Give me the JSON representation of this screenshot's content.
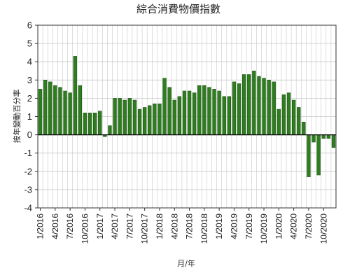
{
  "chart_data": {
    "type": "bar",
    "title": "綜合消費物價指數",
    "xlabel": "月/年",
    "ylabel": "按年變動百分率",
    "ylim": [
      -4,
      6
    ],
    "yticks": [
      -4,
      -3,
      -2,
      -1,
      0,
      1,
      2,
      3,
      4,
      5,
      6
    ],
    "grid": true,
    "legend": "none",
    "colors": {
      "bar": "#2e7d1e",
      "bar_edge": "#1a4a12",
      "grid": "#c8c8c8",
      "zero_line": "#000000"
    },
    "x_tick_labels": [
      {
        "index": 0,
        "label": "1/2016"
      },
      {
        "index": 3,
        "label": "4/2016"
      },
      {
        "index": 6,
        "label": "7/2016"
      },
      {
        "index": 9,
        "label": "10/2016"
      },
      {
        "index": 12,
        "label": "1/2017"
      },
      {
        "index": 15,
        "label": "4/2017"
      },
      {
        "index": 18,
        "label": "7/2017"
      },
      {
        "index": 21,
        "label": "10/2017"
      },
      {
        "index": 24,
        "label": "1/2018"
      },
      {
        "index": 27,
        "label": "4/2018"
      },
      {
        "index": 30,
        "label": "7/2018"
      },
      {
        "index": 33,
        "label": "10/2018"
      },
      {
        "index": 36,
        "label": "1/2019"
      },
      {
        "index": 39,
        "label": "4/2019"
      },
      {
        "index": 42,
        "label": "7/2019"
      },
      {
        "index": 45,
        "label": "10/2019"
      },
      {
        "index": 48,
        "label": "1/2020"
      },
      {
        "index": 51,
        "label": "4/2020"
      },
      {
        "index": 54,
        "label": "7/2020"
      },
      {
        "index": 57,
        "label": "10/2020"
      }
    ],
    "values": [
      2.5,
      3.0,
      2.9,
      2.7,
      2.6,
      2.4,
      2.3,
      4.3,
      2.7,
      1.2,
      1.2,
      1.2,
      1.3,
      -0.1,
      0.5,
      2.0,
      2.0,
      1.9,
      2.0,
      1.9,
      1.4,
      1.5,
      1.6,
      1.7,
      1.7,
      3.1,
      2.6,
      1.9,
      2.1,
      2.4,
      2.4,
      2.3,
      2.7,
      2.7,
      2.6,
      2.5,
      2.4,
      2.1,
      2.1,
      2.9,
      2.8,
      3.3,
      3.3,
      3.5,
      3.2,
      3.1,
      3.0,
      2.9,
      1.4,
      2.2,
      2.3,
      1.9,
      1.5,
      0.7,
      -2.3,
      -0.4,
      -2.2,
      -0.2,
      -0.2,
      -0.7
    ]
  }
}
